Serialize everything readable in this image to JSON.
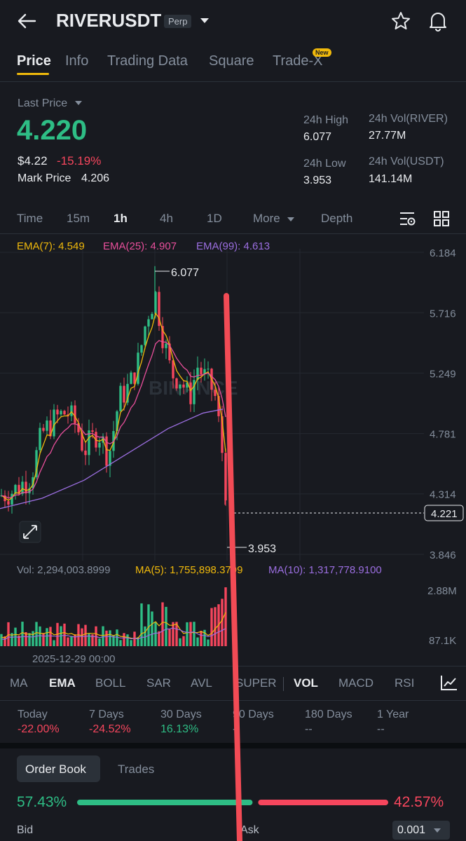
{
  "header": {
    "symbol": "RIVERUSDT",
    "badge": "Perp"
  },
  "tabs": [
    {
      "label": "Price",
      "active": true
    },
    {
      "label": "Info"
    },
    {
      "label": "Trading Data"
    },
    {
      "label": "Square"
    },
    {
      "label": "Trade-X",
      "badge": "New"
    }
  ],
  "ticker": {
    "last_price_label": "Last Price",
    "last_price": "4.220",
    "usd_price": "$4.22",
    "change": "-15.19%",
    "mark_price_label": "Mark Price",
    "mark_price": "4.206",
    "high_label": "24h High",
    "high": "6.077",
    "low_label": "24h Low",
    "low": "3.953",
    "vol_base_label": "24h Vol(RIVER)",
    "vol_base": "27.77M",
    "vol_quote_label": "24h Vol(USDT)",
    "vol_quote": "141.14M"
  },
  "timeframes": [
    "Time",
    "15m",
    "1h",
    "4h",
    "1D",
    "More",
    "Depth"
  ],
  "active_timeframe": "1h",
  "chart": {
    "ema7": "EMA(7): 4.549",
    "ema25": "EMA(25): 4.907",
    "ema99": "EMA(99): 4.613",
    "y_ticks": [
      "6.184",
      "5.716",
      "5.249",
      "4.781",
      "4.314",
      "3.846"
    ],
    "high_marker": "6.077",
    "low_marker": "3.953",
    "current_price_tag": "4.221",
    "watermark": "BINANCE",
    "vol_label": "Vol: 2,294,003.8999",
    "ma5": "MA(5): 1,755,898.3799",
    "ma10": "MA(10): 1,317,778.9100",
    "vol_ticks": [
      "2.88M",
      "87.1K"
    ],
    "date_label": "2025-12-29 00:00"
  },
  "indicators": [
    "MA",
    "EMA",
    "BOLL",
    "SAR",
    "AVL",
    "SUPER",
    "VOL",
    "MACD",
    "RSI",
    "K"
  ],
  "active_indicators": [
    "EMA",
    "VOL"
  ],
  "performance": [
    {
      "label": "Today",
      "value": "-22.00%"
    },
    {
      "label": "7 Days",
      "value": "-24.52%"
    },
    {
      "label": "30 Days",
      "value": "16.13%"
    },
    {
      "label": "90 Days",
      "value": "--"
    },
    {
      "label": "180 Days",
      "value": "--"
    },
    {
      "label": "1 Year",
      "value": "--"
    }
  ],
  "order_book": {
    "tab_order_book": "Order Book",
    "tab_trades": "Trades",
    "bid_percent": "57.43%",
    "ask_percent": "42.57%",
    "bid_ratio": 0.5743,
    "bid_label": "Bid",
    "ask_label": "Ask",
    "precision": "0.001"
  },
  "colors": {
    "green": "#2ebd85",
    "red": "#f6465d",
    "ema7": "#f0b90b",
    "ema25": "#e84f9b",
    "ema99": "#9b6ee0",
    "annotation_line": "#f24b55"
  }
}
